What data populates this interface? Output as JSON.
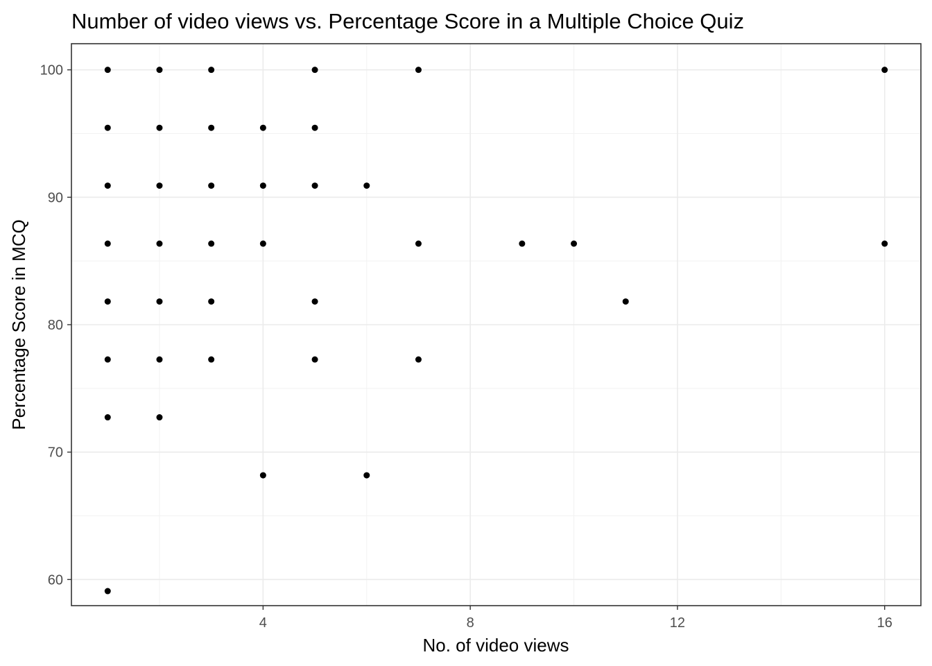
{
  "chart_data": {
    "type": "scatter",
    "title": "Number of video views vs. Percentage Score in a Multiple Choice Quiz",
    "xlabel": "No. of video views",
    "ylabel": "Percentage Score in MCQ",
    "xlim": [
      0.3,
      16.7
    ],
    "ylim": [
      57.95,
      102.05
    ],
    "x_ticks": [
      4,
      8,
      12,
      16
    ],
    "y_ticks": [
      60,
      70,
      80,
      90,
      100
    ],
    "x_tick_labels": [
      "4",
      "8",
      "12",
      "16"
    ],
    "y_tick_labels": [
      "60",
      "70",
      "80",
      "90",
      "100"
    ],
    "grid": true,
    "theme": "bw",
    "point_color": "#000000",
    "points": [
      {
        "x": 1,
        "y": 100
      },
      {
        "x": 1,
        "y": 95.45
      },
      {
        "x": 1,
        "y": 90.91
      },
      {
        "x": 1,
        "y": 86.36
      },
      {
        "x": 1,
        "y": 81.82
      },
      {
        "x": 1,
        "y": 77.27
      },
      {
        "x": 1,
        "y": 72.73
      },
      {
        "x": 1,
        "y": 59.09
      },
      {
        "x": 2,
        "y": 100
      },
      {
        "x": 2,
        "y": 95.45
      },
      {
        "x": 2,
        "y": 90.91
      },
      {
        "x": 2,
        "y": 86.36
      },
      {
        "x": 2,
        "y": 81.82
      },
      {
        "x": 2,
        "y": 77.27
      },
      {
        "x": 2,
        "y": 72.73
      },
      {
        "x": 3,
        "y": 100
      },
      {
        "x": 3,
        "y": 95.45
      },
      {
        "x": 3,
        "y": 90.91
      },
      {
        "x": 3,
        "y": 86.36
      },
      {
        "x": 3,
        "y": 81.82
      },
      {
        "x": 3,
        "y": 77.27
      },
      {
        "x": 4,
        "y": 95.45
      },
      {
        "x": 4,
        "y": 90.91
      },
      {
        "x": 4,
        "y": 86.36
      },
      {
        "x": 4,
        "y": 68.18
      },
      {
        "x": 5,
        "y": 100
      },
      {
        "x": 5,
        "y": 95.45
      },
      {
        "x": 5,
        "y": 90.91
      },
      {
        "x": 5,
        "y": 81.82
      },
      {
        "x": 5,
        "y": 77.27
      },
      {
        "x": 6,
        "y": 90.91
      },
      {
        "x": 6,
        "y": 68.18
      },
      {
        "x": 7,
        "y": 100
      },
      {
        "x": 7,
        "y": 86.36
      },
      {
        "x": 7,
        "y": 77.27
      },
      {
        "x": 9,
        "y": 86.36
      },
      {
        "x": 10,
        "y": 86.36
      },
      {
        "x": 11,
        "y": 81.82
      },
      {
        "x": 16,
        "y": 100
      },
      {
        "x": 16,
        "y": 86.36
      }
    ]
  }
}
